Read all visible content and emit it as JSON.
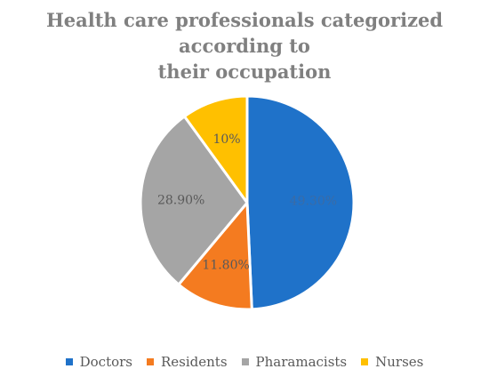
{
  "chart_data": {
    "type": "pie",
    "title": "Health care professionals categorized according to their occupation",
    "title_lines": [
      "Health care professionals categorized according to",
      "their occupation"
    ],
    "categories": [
      "Doctors",
      "Residents",
      "Pharamacists",
      "Nurses"
    ],
    "values": [
      49.3,
      11.8,
      28.9,
      10
    ],
    "labels": [
      "49.30%",
      "11.80%",
      "28.90%",
      "10%"
    ],
    "colors": [
      "#1F72C9",
      "#F47B20",
      "#A5A5A5",
      "#FFC000"
    ],
    "legend_position": "bottom",
    "start_angle": "12 o'clock",
    "direction": "clockwise"
  }
}
